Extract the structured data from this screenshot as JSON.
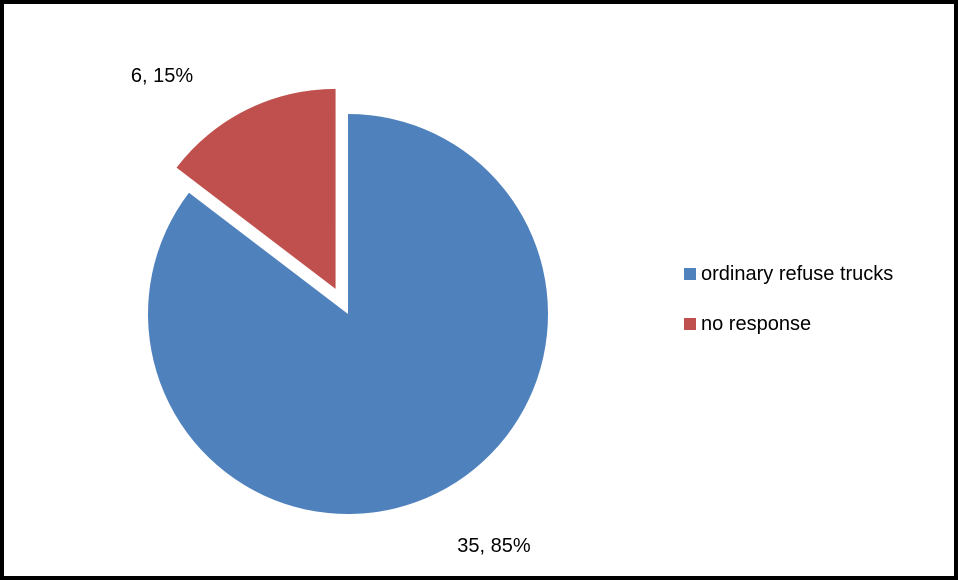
{
  "chart_data": {
    "type": "pie",
    "title": "",
    "series": [
      {
        "values": [
          35,
          6
        ],
        "percent_labels": [
          "85%",
          "15%"
        ]
      }
    ],
    "categories": [
      "ordinary refuse trucks",
      "no response"
    ],
    "data_labels": [
      "35, 85%",
      "6, 15%"
    ],
    "colors": [
      "#4f81bd",
      "#c0504d"
    ],
    "exploded": [
      false,
      true
    ],
    "start_angle_deg": 0,
    "direction": "clockwise",
    "legend_position": "right"
  }
}
